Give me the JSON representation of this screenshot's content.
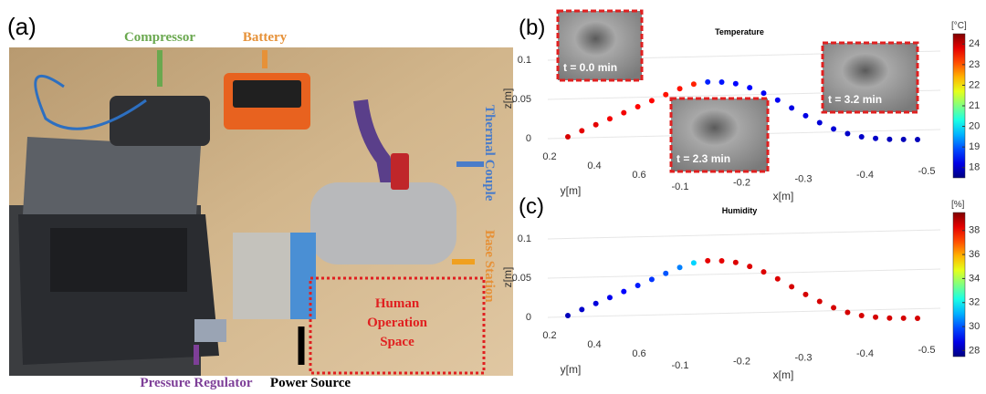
{
  "panel_a": {
    "label": "(a)",
    "annotations": {
      "compressor": "Compressor",
      "battery": "Battery",
      "thermal_couple": "Thermal Couple",
      "base_station": "Base Station",
      "human_operation_space": [
        "Human",
        "Operation",
        "Space"
      ],
      "pressure_regulator": "Pressure Regulator",
      "power_source": "Power Source"
    }
  },
  "chart_data": [
    {
      "type": "scatter3d",
      "panel_label": "(b)",
      "title": "Temperature",
      "colorbar_label": "[°C]",
      "colormap": "jet",
      "xlabel": "x[m]",
      "ylabel": "y[m]",
      "zlabel": "z[m]",
      "x": [
        -0.05,
        -0.07,
        -0.09,
        -0.11,
        -0.13,
        -0.15,
        -0.17,
        -0.19,
        -0.21,
        -0.23,
        -0.25,
        -0.27,
        -0.29,
        -0.31,
        -0.33,
        -0.35,
        -0.37,
        -0.39,
        -0.41,
        -0.43,
        -0.45,
        -0.47,
        -0.49,
        -0.51,
        -0.53,
        -0.55
      ],
      "z": [
        0,
        0.008,
        0.016,
        0.024,
        0.032,
        0.04,
        0.048,
        0.056,
        0.064,
        0.07,
        0.073,
        0.073,
        0.071,
        0.066,
        0.059,
        0.05,
        0.04,
        0.03,
        0.021,
        0.013,
        0.007,
        0.003,
        0.001,
        0,
        0,
        0
      ],
      "values": [
        23.9,
        23.8,
        23.8,
        23.7,
        23.7,
        23.6,
        23.6,
        23.5,
        23.5,
        23.4,
        18.6,
        18.5,
        18.4,
        18.4,
        18.3,
        18.3,
        18.2,
        18.2,
        18.1,
        18.1,
        18.0,
        18.0,
        18.0,
        17.9,
        17.9,
        17.9
      ],
      "xticks": [
        -0.1,
        -0.2,
        -0.3,
        -0.4,
        -0.5
      ],
      "yticks": [
        0.2,
        0.4,
        0.6
      ],
      "zticks": [
        0,
        0.05,
        0.1
      ],
      "clim": [
        17.5,
        24.5
      ],
      "cticks": [
        18,
        19,
        20,
        21,
        22,
        23,
        24
      ],
      "insets": [
        {
          "label": "t = 0.0 min"
        },
        {
          "label": "t = 2.3 min"
        },
        {
          "label": "t = 3.2 min"
        }
      ]
    },
    {
      "type": "scatter3d",
      "panel_label": "(c)",
      "title": "Humidity",
      "colorbar_label": "[%]",
      "colormap": "jet",
      "xlabel": "x[m]",
      "ylabel": "y[m]",
      "zlabel": "z[m]",
      "x": [
        -0.05,
        -0.07,
        -0.09,
        -0.11,
        -0.13,
        -0.15,
        -0.17,
        -0.19,
        -0.21,
        -0.23,
        -0.25,
        -0.27,
        -0.29,
        -0.31,
        -0.33,
        -0.35,
        -0.37,
        -0.39,
        -0.41,
        -0.43,
        -0.45,
        -0.47,
        -0.49,
        -0.51,
        -0.53,
        -0.55
      ],
      "z": [
        0,
        0.008,
        0.016,
        0.024,
        0.032,
        0.04,
        0.048,
        0.056,
        0.064,
        0.07,
        0.073,
        0.073,
        0.071,
        0.066,
        0.059,
        0.05,
        0.04,
        0.03,
        0.021,
        0.013,
        0.007,
        0.003,
        0.001,
        0,
        0,
        0
      ],
      "values": [
        28.2,
        28.4,
        28.6,
        28.8,
        29.0,
        29.3,
        29.6,
        30.0,
        30.5,
        31.5,
        38.3,
        38.3,
        38.4,
        38.4,
        38.4,
        38.4,
        38.5,
        38.5,
        38.5,
        38.5,
        38.5,
        38.5,
        38.5,
        38.5,
        38.5,
        38.5
      ],
      "xticks": [
        -0.1,
        -0.2,
        -0.3,
        -0.4,
        -0.5
      ],
      "yticks": [
        0.2,
        0.4,
        0.6
      ],
      "zticks": [
        0,
        0.05,
        0.1
      ],
      "clim": [
        27.5,
        39.5
      ],
      "cticks": [
        28,
        30,
        32,
        34,
        36,
        38
      ]
    }
  ]
}
